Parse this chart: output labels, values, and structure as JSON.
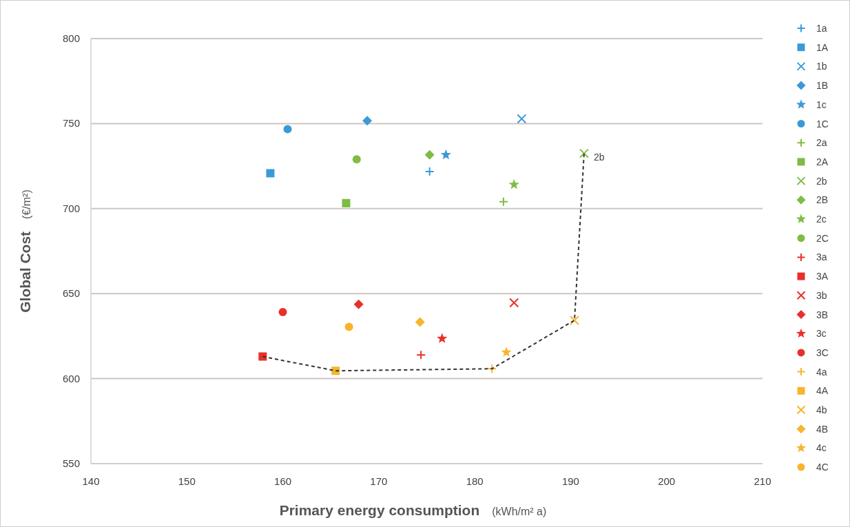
{
  "chart_data": {
    "type": "scatter",
    "xlabel": "Primary energy consumption (kWh/m² a)",
    "ylabel": "Global Cost (€/m²)",
    "xlim": [
      140,
      210
    ],
    "xticks": [
      140,
      150,
      160,
      170,
      180,
      190,
      200,
      210
    ],
    "ylim": [
      550,
      800
    ],
    "yticks": [
      550,
      600,
      650,
      700,
      750,
      800
    ],
    "grid": "y",
    "legend": "right",
    "annotations": [
      {
        "text": "2b",
        "x": 191.4,
        "y": 732.5
      }
    ],
    "series": [
      {
        "name": "1a",
        "color": "#3a9ad9",
        "marker": "cross",
        "x": [
          175.3
        ],
        "values": [
          721.8
        ]
      },
      {
        "name": "1A",
        "color": "#3a9ad9",
        "marker": "square",
        "x": [
          158.7
        ],
        "values": [
          720.8
        ]
      },
      {
        "name": "1b",
        "color": "#3a9ad9",
        "marker": "x",
        "x": [
          184.9
        ],
        "values": [
          752.8
        ]
      },
      {
        "name": "1B",
        "color": "#3a9ad9",
        "marker": "diamond",
        "x": [
          168.8
        ],
        "values": [
          751.7
        ]
      },
      {
        "name": "1c",
        "color": "#3a9ad9",
        "marker": "star",
        "x": [
          177.0
        ],
        "values": [
          731.6
        ]
      },
      {
        "name": "1C",
        "color": "#3a9ad9",
        "marker": "circle",
        "x": [
          160.5
        ],
        "values": [
          746.7
        ]
      },
      {
        "name": "2a",
        "color": "#7ebc43",
        "marker": "cross",
        "x": [
          183.0
        ],
        "values": [
          704.1
        ]
      },
      {
        "name": "2A",
        "color": "#7ebc43",
        "marker": "square",
        "x": [
          166.6
        ],
        "values": [
          703.2
        ]
      },
      {
        "name": "2b",
        "color": "#7ebc43",
        "marker": "x",
        "x": [
          191.4
        ],
        "values": [
          732.5
        ]
      },
      {
        "name": "2B",
        "color": "#7ebc43",
        "marker": "diamond",
        "x": [
          175.3
        ],
        "values": [
          731.6
        ]
      },
      {
        "name": "2c",
        "color": "#7ebc43",
        "marker": "star",
        "x": [
          184.1
        ],
        "values": [
          714.1
        ]
      },
      {
        "name": "2C",
        "color": "#7ebc43",
        "marker": "circle",
        "x": [
          167.7
        ],
        "values": [
          729.0
        ]
      },
      {
        "name": "3a",
        "color": "#e8302a",
        "marker": "cross",
        "x": [
          174.4
        ],
        "values": [
          613.9
        ]
      },
      {
        "name": "3A",
        "color": "#e8302a",
        "marker": "square",
        "x": [
          157.9
        ],
        "values": [
          613.0
        ]
      },
      {
        "name": "3b",
        "color": "#e8302a",
        "marker": "x",
        "x": [
          184.1
        ],
        "values": [
          644.6
        ]
      },
      {
        "name": "3B",
        "color": "#e8302a",
        "marker": "diamond",
        "x": [
          167.9
        ],
        "values": [
          643.7
        ]
      },
      {
        "name": "3c",
        "color": "#e8302a",
        "marker": "star",
        "x": [
          176.6
        ],
        "values": [
          623.6
        ]
      },
      {
        "name": "3C",
        "color": "#e8302a",
        "marker": "circle",
        "x": [
          160.0
        ],
        "values": [
          639.1
        ]
      },
      {
        "name": "4a",
        "color": "#f7b52c",
        "marker": "cross",
        "x": [
          181.8
        ],
        "values": [
          605.8
        ]
      },
      {
        "name": "4A",
        "color": "#f7b52c",
        "marker": "square",
        "x": [
          165.5
        ],
        "values": [
          604.6
        ]
      },
      {
        "name": "4b",
        "color": "#f7b52c",
        "marker": "x",
        "x": [
          190.4
        ],
        "values": [
          634.3
        ]
      },
      {
        "name": "4B",
        "color": "#f7b52c",
        "marker": "diamond",
        "x": [
          174.3
        ],
        "values": [
          633.3
        ]
      },
      {
        "name": "4c",
        "color": "#f7b52c",
        "marker": "star",
        "x": [
          183.3
        ],
        "values": [
          615.5
        ]
      },
      {
        "name": "4C",
        "color": "#f7b52c",
        "marker": "circle",
        "x": [
          166.9
        ],
        "values": [
          630.4
        ]
      },
      {
        "type": "line",
        "color": "#333333",
        "line_style": "dashed",
        "marker": "none",
        "x": [
          157.9,
          165.5,
          181.8,
          190.4,
          191.4
        ],
        "values": [
          613.0,
          604.6,
          605.8,
          634.3,
          732.5
        ]
      }
    ]
  }
}
